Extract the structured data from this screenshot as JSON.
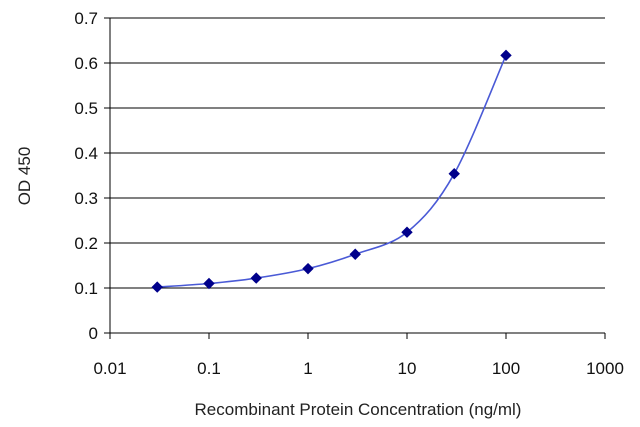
{
  "chart_data": {
    "type": "scatter",
    "title": "",
    "xlabel": "Recombinant Protein Concentration (ng/ml)",
    "ylabel": "OD 450",
    "x_scale": "log",
    "xlim": [
      0.01,
      1000
    ],
    "ylim": [
      0,
      0.7
    ],
    "x_ticks": [
      {
        "value": 0.01,
        "label": "0.01"
      },
      {
        "value": 0.1,
        "label": "0.1"
      },
      {
        "value": 1,
        "label": "1"
      },
      {
        "value": 10,
        "label": "10"
      },
      {
        "value": 100,
        "label": "100"
      },
      {
        "value": 1000,
        "label": "1000"
      }
    ],
    "y_ticks": [
      {
        "value": 0,
        "label": "0"
      },
      {
        "value": 0.1,
        "label": "0.1"
      },
      {
        "value": 0.2,
        "label": "0.2"
      },
      {
        "value": 0.3,
        "label": "0.3"
      },
      {
        "value": 0.4,
        "label": "0.4"
      },
      {
        "value": 0.5,
        "label": "0.5"
      },
      {
        "value": 0.6,
        "label": "0.6"
      },
      {
        "value": 0.7,
        "label": "0.7"
      }
    ],
    "grid": "horizontal",
    "legend": "none",
    "marker": "diamond",
    "fit_line": "smooth",
    "series": [
      {
        "x": [
          0.03,
          0.1,
          0.3,
          1,
          3,
          10,
          30,
          100
        ],
        "y": [
          0.102,
          0.11,
          0.122,
          0.143,
          0.175,
          0.224,
          0.354,
          0.617
        ]
      }
    ],
    "colors": {
      "marker": "#00008b",
      "line": "#4a5ad6",
      "grid": "#000000",
      "axis": "#000000",
      "background": "#ffffff"
    }
  }
}
